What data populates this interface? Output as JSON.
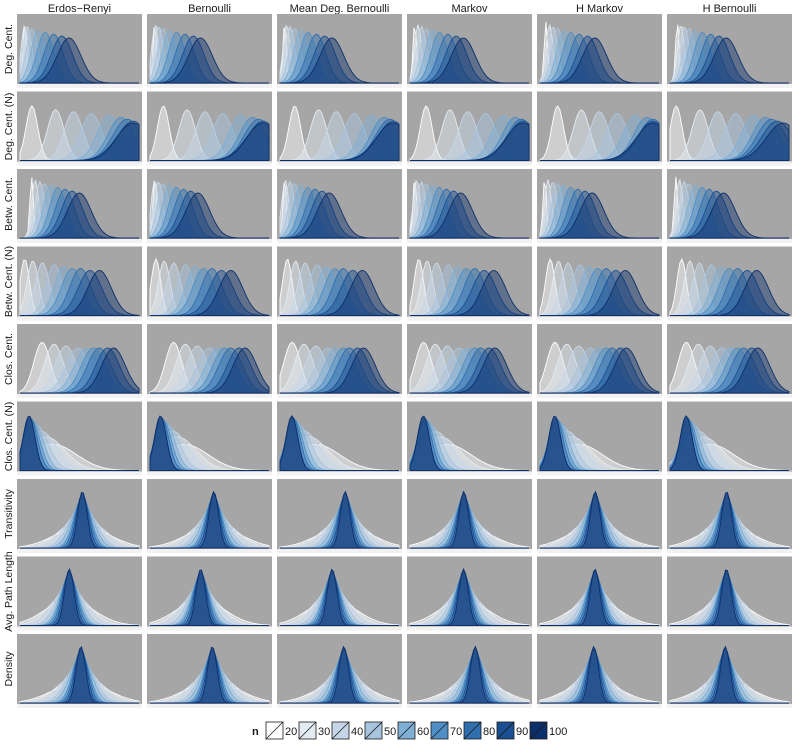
{
  "chart_data": {
    "type": "area",
    "facet_columns": [
      "Erdos−Renyi",
      "Bernoulli",
      "Mean Deg. Bernoulli",
      "Markov",
      "H Markov",
      "H Bernoulli"
    ],
    "facet_rows": [
      "Deg. Cent.",
      "Deg. Cent. (N)",
      "Betw. Cent.",
      "Betw. Cent. (N)",
      "Clos. Cent.",
      "Clos. Cent. (N)",
      "Transitivity",
      "Avg. Path Length",
      "Density"
    ],
    "legend": {
      "title": "n",
      "placement": "bottom",
      "entries": [
        "20",
        "30",
        "40",
        "50",
        "60",
        "70",
        "80",
        "90",
        "100"
      ],
      "colors": [
        "#ffffff",
        "#e2eaf2",
        "#c6d6e8",
        "#a7c4de",
        "#7fafd5",
        "#4f8fc6",
        "#2f6fb0",
        "#1b4f93",
        "#0d2f6b"
      ]
    },
    "grid": false,
    "density_shapes": [
      {
        "peak": [
          0.05,
          0.08,
          0.11,
          0.15,
          0.2,
          0.26,
          0.33,
          0.4,
          0.46
        ],
        "spread": [
          0.015,
          0.03,
          0.04,
          0.05,
          0.06,
          0.07,
          0.08,
          0.09,
          0.1
        ]
      },
      {
        "peak": [
          0.1,
          0.3,
          0.45,
          0.6,
          0.75,
          0.85,
          0.9,
          0.95,
          1.0
        ],
        "spread": [
          0.05,
          0.07,
          0.08,
          0.09,
          0.1,
          0.11,
          0.12,
          0.13,
          0.14
        ]
      },
      {
        "peak": [
          0.05,
          0.08,
          0.12,
          0.16,
          0.21,
          0.27,
          0.33,
          0.39,
          0.45
        ],
        "spread": [
          0.015,
          0.03,
          0.04,
          0.05,
          0.06,
          0.07,
          0.08,
          0.09,
          0.1
        ]
      },
      {
        "peak": [
          0.05,
          0.12,
          0.2,
          0.3,
          0.38,
          0.45,
          0.52,
          0.6,
          0.68
        ],
        "spread": [
          0.04,
          0.05,
          0.06,
          0.07,
          0.08,
          0.09,
          0.09,
          0.1,
          0.1
        ]
      },
      {
        "peak": [
          0.15,
          0.25,
          0.35,
          0.45,
          0.52,
          0.58,
          0.63,
          0.7,
          0.75
        ],
        "spread": [
          0.07,
          0.08,
          0.09,
          0.1,
          0.1,
          0.1,
          0.1,
          0.1,
          0.1
        ]
      },
      {
        "peak": [
          0.3,
          0.24,
          0.2,
          0.16,
          0.14,
          0.12,
          0.11,
          0.1,
          0.1
        ],
        "spread": [
          0.2,
          0.16,
          0.13,
          0.1,
          0.08,
          0.07,
          0.06,
          0.05,
          0.05
        ]
      },
      {
        "peak": [
          0.5,
          0.5,
          0.5,
          0.5,
          0.5,
          0.5,
          0.5,
          0.5,
          0.5
        ],
        "spread": [
          0.22,
          0.18,
          0.14,
          0.11,
          0.09,
          0.07,
          0.06,
          0.05,
          0.04
        ]
      },
      {
        "peak": [
          0.45,
          0.45,
          0.45,
          0.45,
          0.45,
          0.45,
          0.45,
          0.45,
          0.45
        ],
        "spread": [
          0.2,
          0.16,
          0.13,
          0.1,
          0.08,
          0.07,
          0.06,
          0.05,
          0.04
        ]
      },
      {
        "peak": [
          0.5,
          0.5,
          0.5,
          0.5,
          0.5,
          0.5,
          0.5,
          0.5,
          0.5
        ],
        "spread": [
          0.22,
          0.18,
          0.14,
          0.11,
          0.09,
          0.07,
          0.06,
          0.05,
          0.04
        ]
      }
    ]
  }
}
